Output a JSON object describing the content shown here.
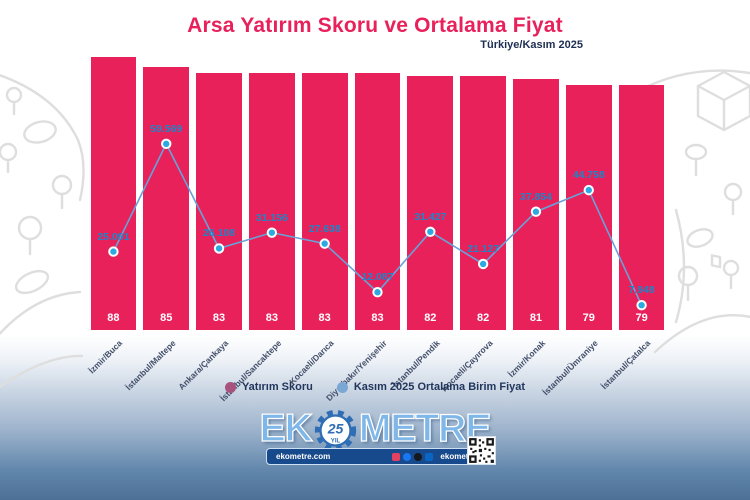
{
  "header": {
    "title": "Arsa Yatırım Skoru ve Ortalama Fiyat",
    "subtitle": "Türkiye/Kasım 2025"
  },
  "chart_data": {
    "type": "bar",
    "title": "Arsa Yatırım Skoru ve Ortalama Fiyat",
    "subtitle": "Türkiye/Kasım 2025",
    "grid": false,
    "legend_position": "bottom",
    "categories": [
      "İzmir/Buca",
      "İstanbul/Maltepe",
      "Ankara/Çankaya",
      "İstanbul/Sancaktepe",
      "Kocaeli/Darıca",
      "Diyarbakır/Yenişehir",
      "İstanbul/Pendik",
      "Kocaeli/Çayırova",
      "İzmir/Konak",
      "İstanbul/Ümraniye",
      "İstanbul/Çatalca"
    ],
    "series": [
      {
        "name": "Yatırım Skoru",
        "type": "bar",
        "color": "#E8215B",
        "values": [
          88,
          85,
          83,
          83,
          83,
          83,
          82,
          82,
          81,
          79,
          79
        ],
        "value_labels": [
          "88",
          "85",
          "83",
          "83",
          "83",
          "83",
          "82",
          "82",
          "81",
          "79",
          "79"
        ]
      },
      {
        "name": "Kasım 2025 Ortalama Birim Fiyat",
        "type": "line",
        "color": "#68A2D8",
        "marker_color": "#2BA9E0",
        "label_color": "#1C86C8",
        "values": [
          25091,
          59569,
          26108,
          31156,
          27638,
          12087,
          31427,
          21127,
          37854,
          44758,
          7948
        ],
        "value_labels": [
          "25.091",
          "59.569",
          "26.108",
          "31.156",
          "27.638",
          "12.087",
          "31.427",
          "21.127",
          "37.854",
          "44.758",
          "7.948"
        ]
      }
    ]
  },
  "legend": {
    "items": [
      {
        "label": "Yatırım Skoru",
        "color": "#A8527E"
      },
      {
        "label": "Kasım 2025 Ortalama Birim Fiyat",
        "color": "#7BA7D4"
      }
    ]
  },
  "footer": {
    "brand_left": "EK",
    "brand_right": "METRE",
    "badge_number": "25",
    "badge_sub": "YIL",
    "website": "ekometre.com",
    "handle": "ekometre",
    "social": [
      {
        "name": "instagram-icon",
        "color": "#E4405F",
        "round": false
      },
      {
        "name": "facebook-icon",
        "color": "#1877F2",
        "round": true
      },
      {
        "name": "x-icon",
        "color": "#15181C",
        "round": true
      },
      {
        "name": "linkedin-icon",
        "color": "#0A66C2",
        "round": false
      }
    ]
  },
  "colors": {
    "bar": "#E8215B",
    "title": "#E8215B",
    "subtitle_text": "#1D2E52",
    "line": "#68A2D8",
    "line_marker": "#2BA9E0",
    "line_label": "#1C86C8",
    "footer_gradient_bottom": "#4C7096",
    "brand_blue": "#7FB7E8",
    "brand_bar_navy": "#174A8C"
  }
}
